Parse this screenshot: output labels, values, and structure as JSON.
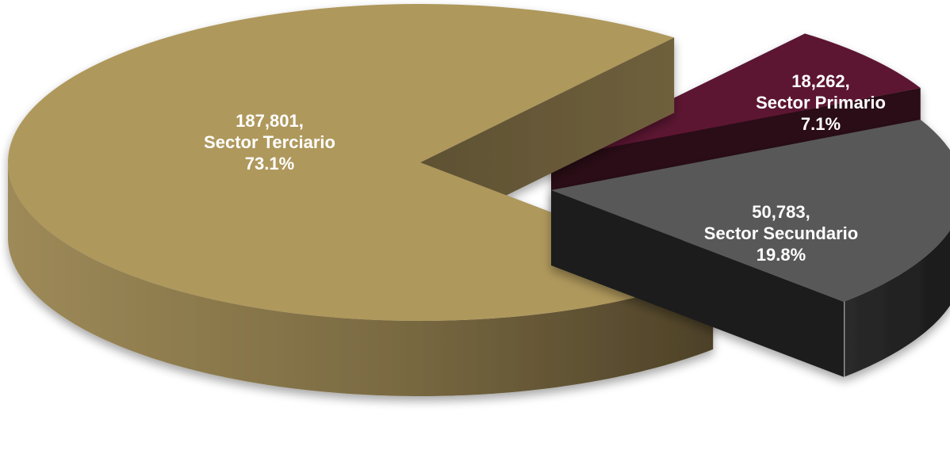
{
  "chart_data": {
    "type": "pie",
    "style": "3d-exploded",
    "title": "",
    "slices": [
      {
        "name": "Sector Primario",
        "value": 18262,
        "value_text": "18,262,",
        "name_text": "Sector Primario",
        "percent": 7.1,
        "percent_text": "7.1%",
        "color": "#5c1232"
      },
      {
        "name": "Sector Secundario",
        "value": 50783,
        "value_text": "50,783,",
        "name_text": "Sector Secundario",
        "percent": 19.8,
        "percent_text": "19.8%",
        "color": "#595959"
      },
      {
        "name": "Sector Terciario",
        "value": 187801,
        "value_text": "187,801,",
        "name_text": "Sector Terciario",
        "percent": 73.1,
        "percent_text": "73.1%",
        "color": "#af985c"
      }
    ]
  }
}
